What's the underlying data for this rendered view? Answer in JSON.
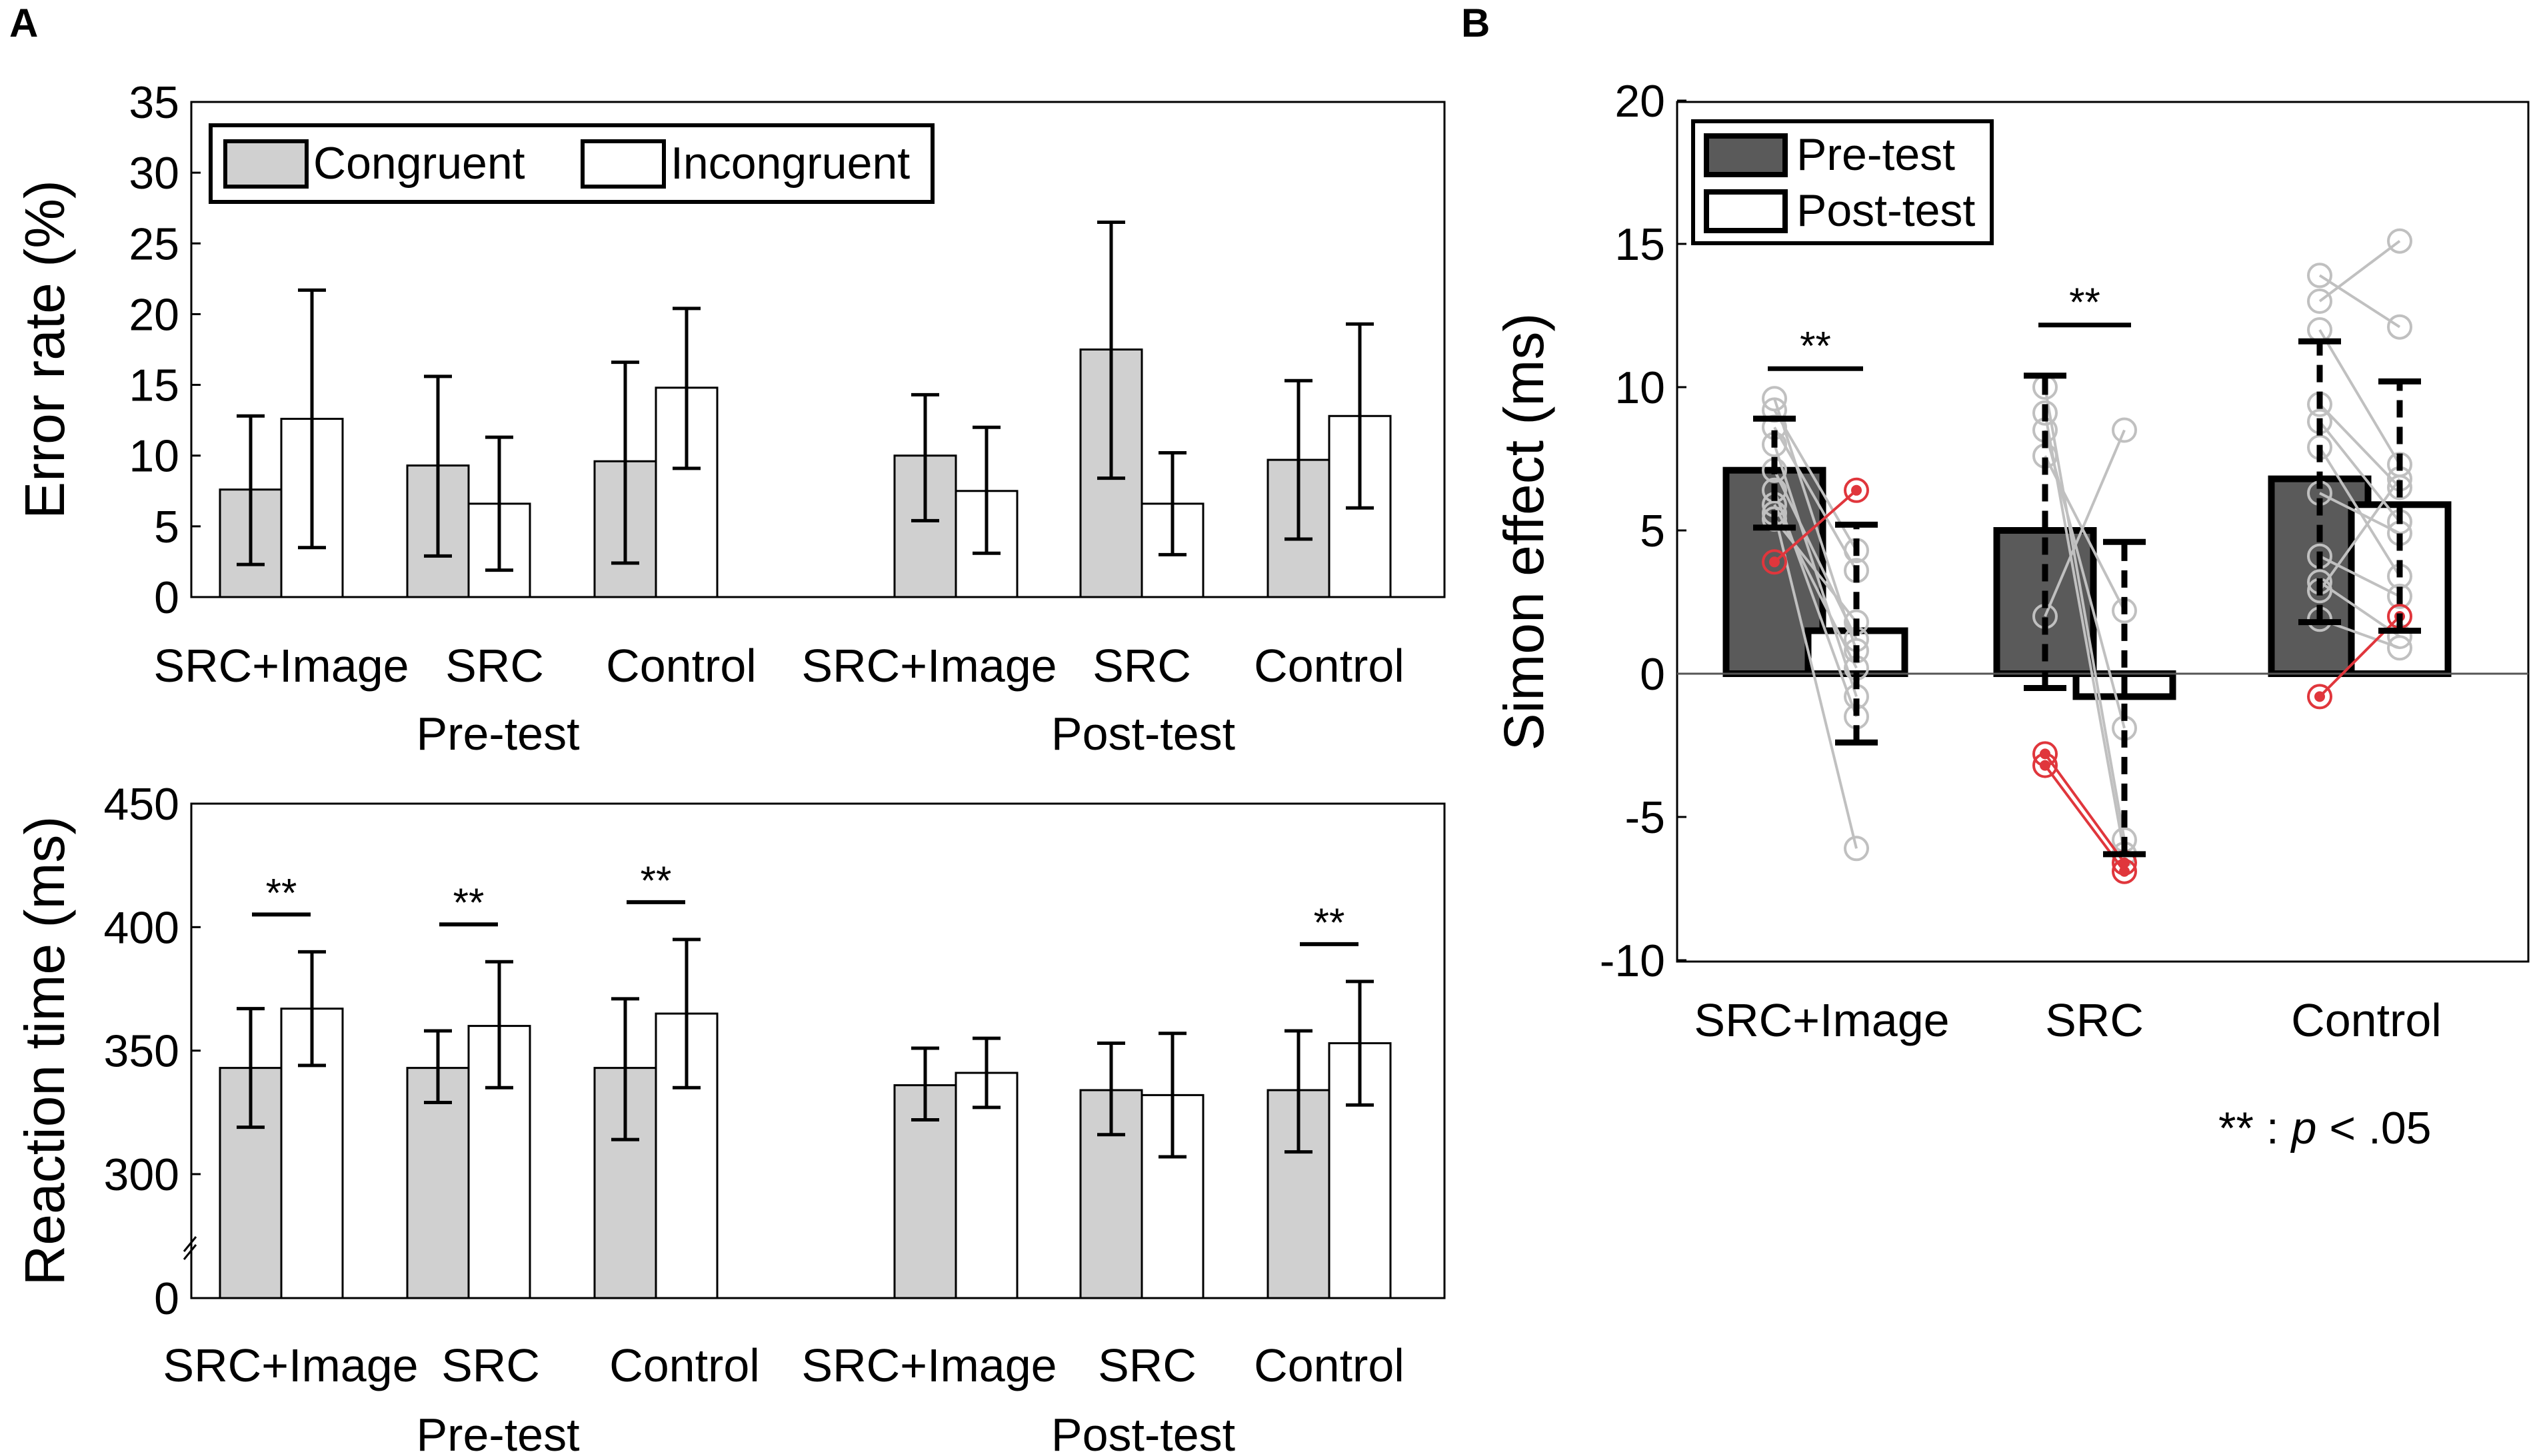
{
  "panels": {
    "a": "A",
    "b": "B"
  },
  "colors": {
    "congruent": "#d0d0d0",
    "incongruent": "#ffffff",
    "pretest": "#5a5a5a",
    "posttest": "#ffffff",
    "subject_gray": "#c0c0c0",
    "subject_red": "#e0363c"
  },
  "footnote": {
    "stars": "**",
    "sep": " : ",
    "p": "p",
    "rest": " < .05"
  },
  "chart_data": [
    {
      "id": "error_rate",
      "type": "bar",
      "ylabel": "Error rate (%)",
      "ylim": [
        0,
        35
      ],
      "yticks": [
        0,
        5,
        10,
        15,
        20,
        25,
        30,
        35
      ],
      "legend": {
        "position": "top-left",
        "entries": [
          "Congruent",
          "Incongruent"
        ]
      },
      "groups": [
        "Pre-test",
        "Post-test"
      ],
      "categories": [
        "SRC+Image",
        "SRC",
        "Control"
      ],
      "series": [
        {
          "name": "Congruent",
          "values": [
            [
              7.6,
              9.3,
              9.6
            ],
            [
              10.0,
              17.5,
              9.7
            ]
          ],
          "err_low": [
            [
              2.3,
              2.9,
              2.4
            ],
            [
              5.4,
              8.4,
              4.1
            ]
          ],
          "err_high": [
            [
              12.8,
              15.6,
              16.6
            ],
            [
              14.3,
              26.5,
              15.3
            ]
          ]
        },
        {
          "name": "Incongruent",
          "values": [
            [
              12.6,
              6.6,
              14.8
            ],
            [
              7.5,
              6.6,
              12.8
            ]
          ],
          "err_low": [
            [
              3.5,
              1.9,
              9.1
            ],
            [
              3.1,
              3.0,
              6.3
            ]
          ],
          "err_high": [
            [
              21.7,
              11.3,
              20.4
            ],
            [
              12.0,
              10.2,
              19.3
            ]
          ]
        }
      ],
      "significance": []
    },
    {
      "id": "reaction_time",
      "type": "bar",
      "ylabel": "Reaction time (ms)",
      "ylim": [
        250,
        450
      ],
      "axis_break": true,
      "yticks": [
        300,
        350,
        400,
        450
      ],
      "ytick_zero_label": "0",
      "groups": [
        "Pre-test",
        "Post-test"
      ],
      "categories": [
        "SRC+Image",
        "SRC",
        "Control"
      ],
      "series": [
        {
          "name": "Congruent",
          "values": [
            [
              343,
              343,
              343
            ],
            [
              336,
              334,
              334
            ]
          ],
          "err_low": [
            [
              319,
              329,
              314
            ],
            [
              322,
              316,
              309
            ]
          ],
          "err_high": [
            [
              367,
              358,
              371
            ],
            [
              351,
              353,
              358
            ]
          ]
        },
        {
          "name": "Incongruent",
          "values": [
            [
              367,
              360,
              365
            ],
            [
              341,
              332,
              353
            ]
          ],
          "err_low": [
            [
              344,
              335,
              335
            ],
            [
              327,
              307,
              328
            ]
          ],
          "err_high": [
            [
              390,
              386,
              395
            ],
            [
              355,
              357,
              378
            ]
          ]
        }
      ],
      "significance": [
        {
          "group": "Pre-test",
          "category": "SRC+Image",
          "label": "**"
        },
        {
          "group": "Pre-test",
          "category": "SRC",
          "label": "**"
        },
        {
          "group": "Pre-test",
          "category": "Control",
          "label": "**"
        },
        {
          "group": "Post-test",
          "category": "Control",
          "label": "**"
        }
      ]
    },
    {
      "id": "simon_effect",
      "type": "bar",
      "ylabel": "Simon effect (ms)",
      "ylim": [
        -10,
        20
      ],
      "yticks": [
        -10,
        -5,
        0,
        5,
        10,
        15,
        20
      ],
      "legend": {
        "position": "top-left",
        "entries": [
          "Pre-test",
          "Post-test"
        ]
      },
      "categories": [
        "SRC+Image",
        "SRC",
        "Control"
      ],
      "series": [
        {
          "name": "Pre-test",
          "values": [
            7.1,
            5.0,
            6.8
          ],
          "err_low": [
            5.1,
            -0.5,
            1.8
          ],
          "err_high": [
            8.9,
            10.4,
            11.6
          ]
        },
        {
          "name": "Post-test",
          "values": [
            1.5,
            -0.8,
            5.9
          ],
          "err_low": [
            -2.4,
            -6.3,
            1.5
          ],
          "err_high": [
            5.2,
            4.6,
            10.2
          ]
        }
      ],
      "subjects": [
        [
          [
            9.6,
            0.8
          ],
          [
            9.2,
            4.3
          ],
          [
            8.6,
            3.6
          ],
          [
            8.0,
            -0.8
          ],
          [
            7.1,
            1.2
          ],
          [
            6.4,
            -1.5
          ],
          [
            5.9,
            0.2
          ],
          [
            5.6,
            -6.1
          ],
          [
            5.4,
            1.8
          ],
          [
            3.9,
            6.4,
            "red"
          ]
        ],
        [
          [
            10.0,
            -5.8
          ],
          [
            9.1,
            -6.3
          ],
          [
            8.5,
            -1.9
          ],
          [
            7.6,
            2.2
          ],
          [
            2.0,
            8.5
          ],
          [
            -2.8,
            -6.6,
            "red"
          ],
          [
            -3.2,
            -6.9,
            "red"
          ]
        ],
        [
          [
            13.9,
            12.1
          ],
          [
            13.0,
            15.1
          ],
          [
            12.0,
            7.3
          ],
          [
            9.4,
            6.5
          ],
          [
            8.8,
            5.3
          ],
          [
            7.9,
            3.4
          ],
          [
            6.3,
            4.9
          ],
          [
            4.1,
            2.7
          ],
          [
            3.2,
            1.3
          ],
          [
            2.9,
            6.8
          ],
          [
            1.9,
            0.9
          ],
          [
            -0.8,
            2.0,
            "red"
          ]
        ]
      ],
      "significance": [
        {
          "category": "SRC+Image",
          "label": "**"
        },
        {
          "category": "SRC",
          "label": "**"
        }
      ]
    }
  ]
}
